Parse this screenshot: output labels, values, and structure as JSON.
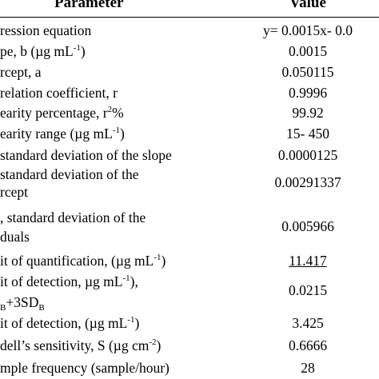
{
  "table": {
    "header": [
      "Parameter",
      "Value"
    ],
    "rows": [
      {
        "label": [
          [
            {
              "text": "ression equation"
            }
          ]
        ],
        "value": "y= 0.0015x- 0.0"
      },
      {
        "label": [
          [
            {
              "text": "pe, b (µg mL"
            },
            {
              "text": "-1",
              "style": "sup"
            },
            {
              "text": ")"
            }
          ]
        ],
        "value": "0.0015"
      },
      {
        "label": [
          [
            {
              "text": "rcept, a"
            }
          ]
        ],
        "value": "0.050115"
      },
      {
        "label": [
          [
            {
              "text": "relation coefficient, r"
            }
          ]
        ],
        "value": "0.9996"
      },
      {
        "label": [
          [
            {
              "text": "earity percentage, r"
            },
            {
              "text": "2",
              "style": "sup"
            },
            {
              "text": "%"
            }
          ]
        ],
        "value": "99.92"
      },
      {
        "label": [
          [
            {
              "text": "earity range  (µg mL"
            },
            {
              "text": "-1",
              "style": "sup"
            },
            {
              "text": ")"
            }
          ]
        ],
        "value": "15- 450"
      },
      {
        "label": [
          [
            {
              "text": "standard deviation of the slope"
            }
          ]
        ],
        "value": "0.0000125"
      },
      {
        "label": [
          [
            {
              "text": "standard deviation of the"
            }
          ],
          [
            {
              "text": "rcept"
            }
          ]
        ],
        "value": "0.00291337"
      },
      {
        "label": [
          [
            {
              "text": ", standard deviation of the"
            }
          ],
          [
            {
              "text": "duals"
            }
          ]
        ],
        "value": "0.005966"
      },
      {
        "label": [
          [
            {
              "text": "it of quantification, (µg mL"
            },
            {
              "text": "-1",
              "style": "sup"
            },
            {
              "text": ")"
            }
          ]
        ],
        "value": "11.417",
        "value_style": "underline"
      },
      {
        "label": [
          [
            {
              "text": "it of detection, µg mL"
            },
            {
              "text": "-1",
              "style": "sup"
            },
            {
              "text": "),"
            }
          ],
          [
            {
              "text": "B",
              "style": "sub"
            },
            {
              "text": "+3SD"
            },
            {
              "text": "B",
              "style": "sub"
            }
          ]
        ],
        "value": "0.0215"
      },
      {
        "label": [
          [
            {
              "text": "it of detection, (µg mL"
            },
            {
              "text": "-1",
              "style": "sup"
            },
            {
              "text": ")"
            }
          ]
        ],
        "value": "3.425"
      },
      {
        "label": [
          [
            {
              "text": "dell’s sensitivity, S (µg cm"
            },
            {
              "text": "-2",
              "style": "sup"
            },
            {
              "text": ")"
            }
          ]
        ],
        "value": "0.6666"
      },
      {
        "label": [
          [
            {
              "text": "mple frequency (sample/hour)"
            }
          ]
        ],
        "value": "28"
      }
    ]
  }
}
